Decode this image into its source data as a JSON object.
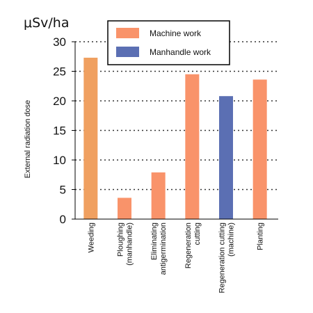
{
  "chart_data": {
    "type": "bar",
    "unit_label": "μSv/ha",
    "ylabel": "External radiation dose",
    "xlabel": "",
    "ylim": [
      0,
      30
    ],
    "yticks": [
      0,
      5,
      10,
      15,
      20,
      25,
      30
    ],
    "grid": true,
    "legend_position": "top-right",
    "categories": [
      [
        "Weeding"
      ],
      [
        "Ploughing",
        "(manhandle)"
      ],
      [
        "Eliminating",
        "antigermination"
      ],
      [
        "Regeneration",
        "cutting"
      ],
      [
        "Regeneration cutting",
        "(machine)"
      ],
      [
        "Planting"
      ]
    ],
    "values": [
      27.3,
      3.6,
      7.9,
      24.5,
      20.8,
      23.6
    ],
    "bar_series": [
      0,
      0,
      0,
      0,
      1,
      0
    ],
    "series": [
      {
        "name": "Machine work",
        "color": "#f9936a"
      },
      {
        "name": "Manhandle work",
        "color": "#5b6fb3"
      }
    ],
    "first_bar_color": "#f0a060"
  }
}
